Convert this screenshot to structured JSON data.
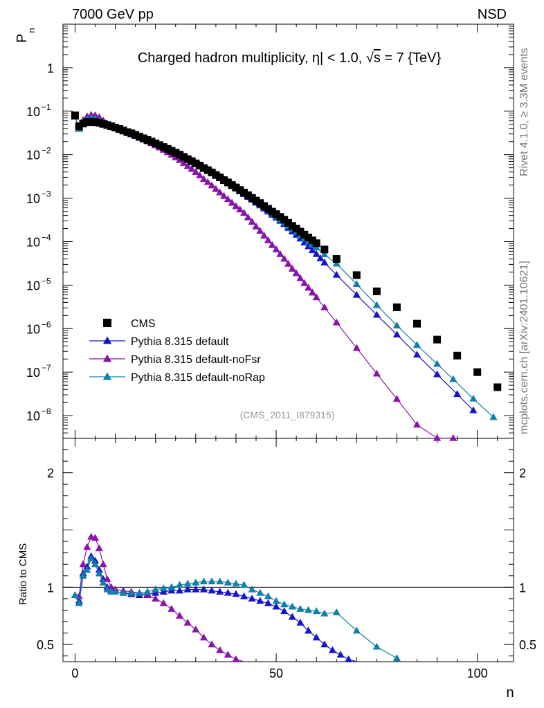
{
  "header": {
    "energy": "7000 GeV pp",
    "process": "NSD"
  },
  "side_labels": {
    "rivet": "Rivet 4.1.0, ≥ 3.3M events",
    "mcplots": "mcplots.cern.ch [arXiv:2401.10621]"
  },
  "analysis_id": "(CMS_2011_I879315)",
  "chart_data": {
    "type": "scatter",
    "title": "Charged hadron multiplicity, η| < 1.0, √s = 7 {TeV}",
    "title_parts": {
      "main": "Charged hadron multiplicity, ",
      "eta": "η",
      "cut": "| < 1.0, ",
      "sqrt": "√",
      "s": "s",
      "tail": " = 7 {TeV}"
    },
    "xlabel": "n",
    "ylabel_main": "P",
    "ylabel_sub": "n",
    "ylabel_ratio": "Ratio to CMS",
    "xlim": [
      -3,
      109
    ],
    "ylim_main": [
      3e-09,
      10
    ],
    "ylim_ratio": [
      0.35,
      2.3
    ],
    "yscale_main": "log",
    "x_ticks": [
      0,
      50,
      100
    ],
    "x_tick_labels": [
      "0",
      "50",
      "100"
    ],
    "y_ticks_main": [
      1e-08,
      1e-07,
      1e-06,
      1e-05,
      0.0001,
      0.001,
      0.01,
      0.1,
      1
    ],
    "y_tick_labels_main": [
      {
        "base": "10",
        "exp": "−8"
      },
      {
        "base": "10",
        "exp": "−7"
      },
      {
        "base": "10",
        "exp": "−6"
      },
      {
        "base": "10",
        "exp": "−5"
      },
      {
        "base": "10",
        "exp": "−4"
      },
      {
        "base": "10",
        "exp": "−3"
      },
      {
        "base": "10",
        "exp": "−2"
      },
      {
        "base": "10",
        "exp": "−1"
      },
      {
        "base": "1",
        "exp": ""
      }
    ],
    "y_ticks_ratio": [
      0.5,
      1,
      2
    ],
    "y_tick_labels_ratio": [
      "0.5",
      "1",
      "2"
    ],
    "legend_position": "lower-left",
    "legend": [
      "CMS",
      "Pythia 8.315 default",
      "Pythia 8.315 default-noFsr",
      "Pythia 8.315 default-noRap"
    ],
    "series": [
      {
        "name": "CMS",
        "color": "#000000",
        "marker": "square",
        "x": [
          0,
          1,
          2,
          3,
          4,
          5,
          6,
          7,
          8,
          9,
          10,
          11,
          12,
          13,
          14,
          15,
          16,
          17,
          18,
          19,
          20,
          21,
          22,
          23,
          24,
          25,
          26,
          27,
          28,
          29,
          30,
          31,
          32,
          33,
          34,
          35,
          36,
          37,
          38,
          39,
          40,
          41,
          42,
          43,
          44,
          45,
          46,
          47,
          48,
          49,
          50,
          51,
          52,
          53,
          54,
          55,
          56,
          57,
          58,
          59,
          60,
          62,
          65,
          70,
          75,
          80,
          85,
          90,
          95,
          100,
          105
        ],
        "y": [
          0.08,
          0.045,
          0.052,
          0.056,
          0.057,
          0.056,
          0.054,
          0.051,
          0.048,
          0.045,
          0.042,
          0.039,
          0.036,
          0.033,
          0.031,
          0.0285,
          0.026,
          0.0238,
          0.0218,
          0.02,
          0.0182,
          0.0166,
          0.015,
          0.0136,
          0.0123,
          0.0111,
          0.01,
          0.0089,
          0.0079,
          0.0071,
          0.0063,
          0.0056,
          0.0049,
          0.0044,
          0.0039,
          0.0034,
          0.003,
          0.0026,
          0.0023,
          0.002,
          0.00176,
          0.00154,
          0.00134,
          0.00117,
          0.00102,
          0.00088,
          0.00077,
          0.00066,
          0.00057,
          0.00049,
          0.00043,
          0.00037,
          0.00032,
          0.00027,
          0.00023,
          0.0002,
          0.00017,
          0.000145,
          0.000125,
          0.000107,
          9.2e-05,
          6.6e-05,
          4e-05,
          1.7e-05,
          7.2e-06,
          3.1e-06,
          1.3e-06,
          5.6e-07,
          2.4e-07,
          1e-07,
          4.5e-08
        ]
      },
      {
        "name": "Pythia 8.315 default",
        "color": "#1414cc",
        "marker": "triangle",
        "ratio_color": "#1414cc"
      },
      {
        "name": "Pythia 8.315 default-noFsr",
        "color": "#8a14aa",
        "marker": "triangle"
      },
      {
        "name": "Pythia 8.315 default-noRap",
        "color": "#1080a8",
        "marker": "triangle"
      }
    ],
    "ratio_series": [
      {
        "name": "Pythia 8.315 default",
        "color": "#1414cc",
        "x": [
          0,
          1,
          2,
          3,
          4,
          5,
          6,
          7,
          8,
          9,
          10,
          12,
          14,
          16,
          18,
          20,
          22,
          24,
          26,
          28,
          30,
          32,
          34,
          36,
          38,
          40,
          42,
          44,
          46,
          48,
          50,
          52,
          54,
          56,
          58,
          60,
          62,
          64,
          66,
          68,
          70
        ],
        "y": [
          0.93,
          0.88,
          1.12,
          1.18,
          1.27,
          1.23,
          1.15,
          1.07,
          1.0,
          0.97,
          0.96,
          0.95,
          0.94,
          0.93,
          0.94,
          0.95,
          0.96,
          0.97,
          0.97,
          0.98,
          0.98,
          0.98,
          0.97,
          0.96,
          0.95,
          0.94,
          0.92,
          0.9,
          0.88,
          0.86,
          0.83,
          0.79,
          0.74,
          0.69,
          0.62,
          0.56,
          0.5,
          0.45,
          0.41,
          0.37,
          0.35
        ]
      },
      {
        "name": "Pythia 8.315 default-noFsr",
        "color": "#8a14aa",
        "x": [
          0,
          1,
          2,
          3,
          4,
          5,
          6,
          7,
          8,
          9,
          10,
          12,
          14,
          16,
          18,
          20,
          22,
          24,
          26,
          28,
          30,
          32,
          34,
          36,
          38,
          40,
          42
        ],
        "y": [
          0.93,
          0.92,
          1.2,
          1.35,
          1.44,
          1.43,
          1.34,
          1.2,
          1.07,
          1.0,
          0.98,
          0.97,
          0.96,
          0.95,
          0.93,
          0.9,
          0.86,
          0.81,
          0.75,
          0.69,
          0.63,
          0.56,
          0.5,
          0.45,
          0.41,
          0.37,
          0.34
        ]
      },
      {
        "name": "Pythia 8.315 default-noRap",
        "color": "#1080a8",
        "x": [
          0,
          1,
          2,
          3,
          4,
          5,
          6,
          7,
          8,
          9,
          10,
          12,
          14,
          16,
          18,
          20,
          22,
          24,
          26,
          28,
          30,
          32,
          34,
          36,
          38,
          40,
          42,
          44,
          46,
          48,
          50,
          52,
          54,
          56,
          58,
          60,
          62,
          65,
          70,
          75,
          80
        ],
        "y": [
          0.93,
          0.86,
          1.1,
          1.15,
          1.25,
          1.2,
          1.12,
          1.04,
          0.98,
          0.96,
          0.96,
          0.95,
          0.95,
          0.95,
          0.96,
          0.98,
          0.99,
          1.0,
          1.02,
          1.03,
          1.04,
          1.05,
          1.05,
          1.05,
          1.04,
          1.03,
          1.02,
          0.98,
          0.95,
          0.92,
          0.88,
          0.85,
          0.83,
          0.81,
          0.8,
          0.79,
          0.77,
          0.78,
          0.62,
          0.48,
          0.38
        ]
      }
    ]
  }
}
